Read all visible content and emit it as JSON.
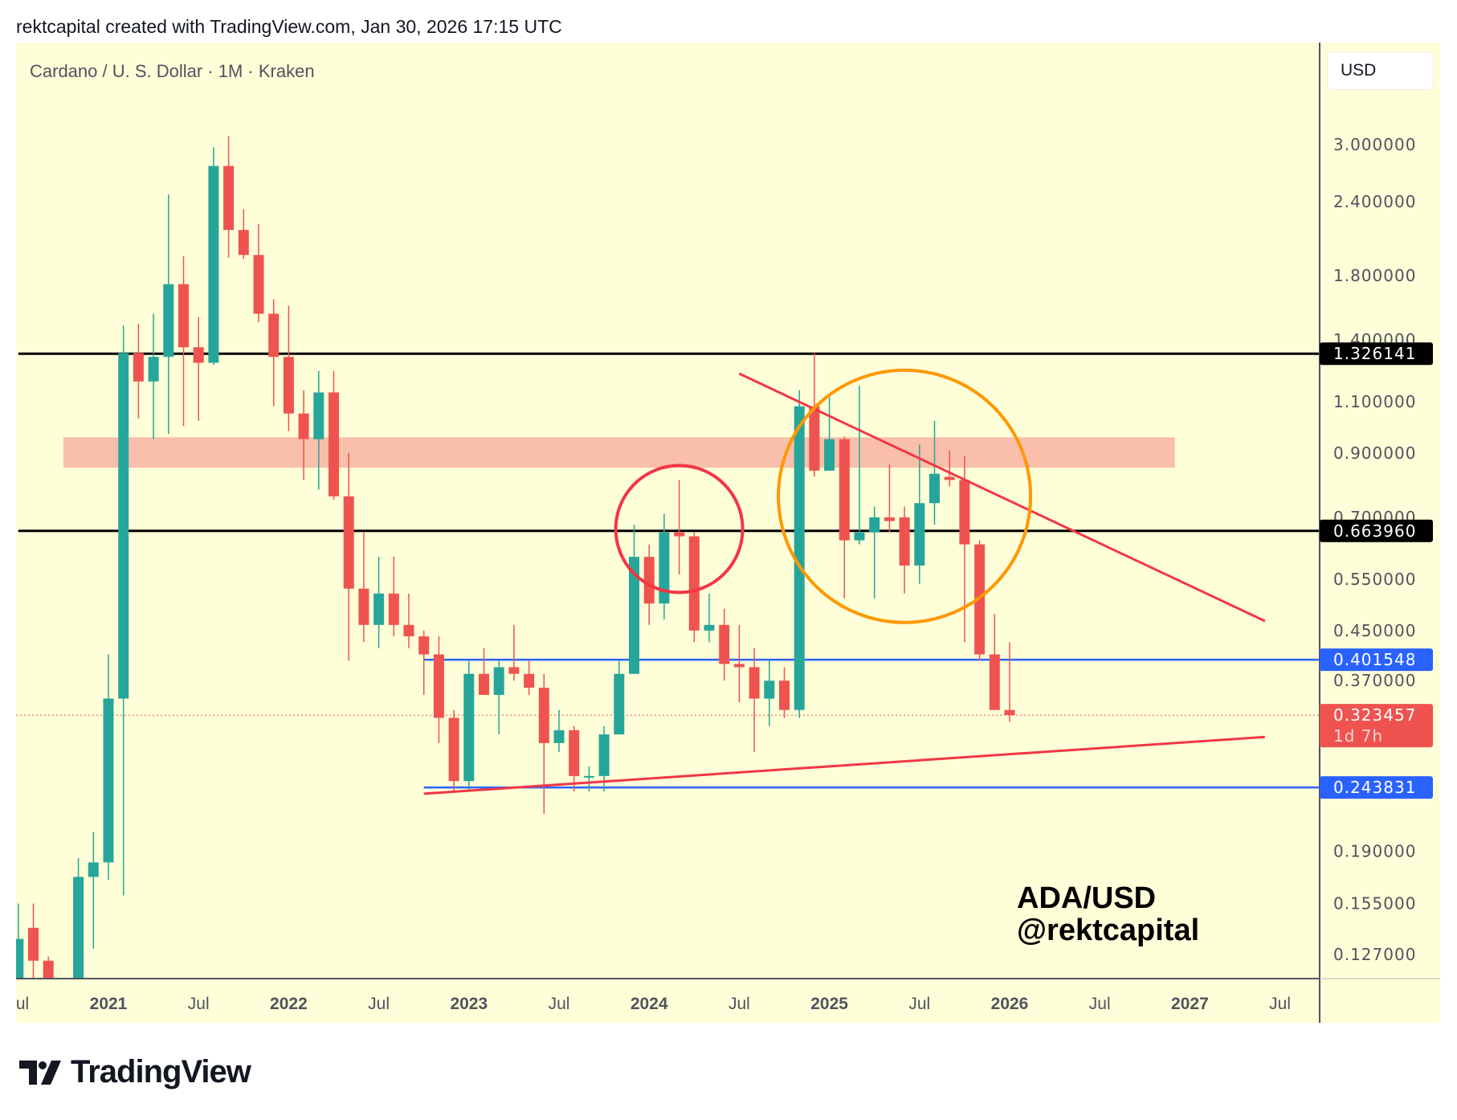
{
  "header": {
    "text": "rektcapital created with TradingView.com, Jan 30, 2026 17:15 UTC"
  },
  "symbol": {
    "title": "Cardano / U. S. Dollar · 1M · Kraken"
  },
  "currency_button": "USD",
  "footer": {
    "logo_text": "TradingView"
  },
  "chart_data": {
    "type": "candlestick",
    "scale": "log",
    "colors": {
      "up": "#26a69a",
      "down": "#ef5350"
    },
    "ylim": [
      0.1157,
      4.5
    ],
    "y_ticks": [
      "3.000000",
      "2.400000",
      "1.800000",
      "1.400000",
      "1.100000",
      "0.900000",
      "0.700000",
      "0.550000",
      "0.450000",
      "0.370000",
      "0.190000",
      "0.155000",
      "0.127000"
    ],
    "x_ticks": [
      {
        "date": "2020-07",
        "label": "Jul",
        "bold": false
      },
      {
        "date": "2021-01",
        "label": "2021",
        "bold": true
      },
      {
        "date": "2021-07",
        "label": "Jul",
        "bold": false
      },
      {
        "date": "2022-01",
        "label": "2022",
        "bold": true
      },
      {
        "date": "2022-07",
        "label": "Jul",
        "bold": false
      },
      {
        "date": "2023-01",
        "label": "2023",
        "bold": true
      },
      {
        "date": "2023-07",
        "label": "Jul",
        "bold": false
      },
      {
        "date": "2024-01",
        "label": "2024",
        "bold": true
      },
      {
        "date": "2024-07",
        "label": "Jul",
        "bold": false
      },
      {
        "date": "2025-01",
        "label": "2025",
        "bold": true
      },
      {
        "date": "2025-07",
        "label": "Jul",
        "bold": false
      },
      {
        "date": "2026-01",
        "label": "2026",
        "bold": true
      },
      {
        "date": "2026-07",
        "label": "Jul",
        "bold": false
      },
      {
        "date": "2027-01",
        "label": "2027",
        "bold": true
      },
      {
        "date": "2027-07",
        "label": "Jul",
        "bold": false
      }
    ],
    "candles_columns": [
      "date",
      "open",
      "high",
      "low",
      "close"
    ],
    "candles": [
      [
        "2020-07",
        0.095,
        0.155,
        0.09,
        0.135
      ],
      [
        "2020-08",
        0.141,
        0.155,
        0.115,
        0.124
      ],
      [
        "2020-09",
        0.124,
        0.126,
        0.08,
        0.1
      ],
      [
        "2020-10",
        0.1,
        0.11,
        0.09,
        0.097
      ],
      [
        "2020-11",
        0.097,
        0.185,
        0.09,
        0.172
      ],
      [
        "2020-12",
        0.172,
        0.205,
        0.13,
        0.182
      ],
      [
        "2021-01",
        0.182,
        0.41,
        0.17,
        0.345
      ],
      [
        "2021-02",
        0.345,
        1.48,
        0.16,
        1.33
      ],
      [
        "2021-03",
        1.33,
        1.49,
        1.03,
        1.19
      ],
      [
        "2021-04",
        1.19,
        1.55,
        0.95,
        1.31
      ],
      [
        "2021-05",
        1.31,
        2.47,
        0.97,
        1.74
      ],
      [
        "2021-06",
        1.74,
        1.94,
        1.0,
        1.36
      ],
      [
        "2021-07",
        1.36,
        1.53,
        1.02,
        1.28
      ],
      [
        "2021-08",
        1.28,
        2.97,
        1.27,
        2.76
      ],
      [
        "2021-09",
        2.76,
        3.1,
        1.93,
        2.15
      ],
      [
        "2021-10",
        2.15,
        2.33,
        1.92,
        1.95
      ],
      [
        "2021-11",
        1.95,
        2.2,
        1.5,
        1.55
      ],
      [
        "2021-12",
        1.55,
        1.64,
        1.08,
        1.31
      ],
      [
        "2022-01",
        1.31,
        1.6,
        0.98,
        1.05
      ],
      [
        "2022-02",
        1.05,
        1.15,
        0.81,
        0.95
      ],
      [
        "2022-03",
        0.95,
        1.24,
        0.78,
        1.14
      ],
      [
        "2022-04",
        1.14,
        1.24,
        0.75,
        0.76
      ],
      [
        "2022-05",
        0.76,
        0.9,
        0.4,
        0.53
      ],
      [
        "2022-06",
        0.53,
        0.66,
        0.43,
        0.46
      ],
      [
        "2022-07",
        0.46,
        0.6,
        0.42,
        0.52
      ],
      [
        "2022-08",
        0.52,
        0.6,
        0.44,
        0.46
      ],
      [
        "2022-09",
        0.46,
        0.52,
        0.42,
        0.44
      ],
      [
        "2022-10",
        0.44,
        0.45,
        0.35,
        0.41
      ],
      [
        "2022-11",
        0.41,
        0.44,
        0.29,
        0.32
      ],
      [
        "2022-12",
        0.32,
        0.33,
        0.24,
        0.25
      ],
      [
        "2023-01",
        0.25,
        0.4,
        0.24,
        0.38
      ],
      [
        "2023-02",
        0.38,
        0.42,
        0.35,
        0.35
      ],
      [
        "2023-03",
        0.35,
        0.4,
        0.3,
        0.39
      ],
      [
        "2023-04",
        0.39,
        0.46,
        0.37,
        0.38
      ],
      [
        "2023-05",
        0.38,
        0.4,
        0.35,
        0.36
      ],
      [
        "2023-06",
        0.36,
        0.38,
        0.22,
        0.29
      ],
      [
        "2023-07",
        0.29,
        0.33,
        0.28,
        0.305
      ],
      [
        "2023-08",
        0.305,
        0.31,
        0.24,
        0.255
      ],
      [
        "2023-09",
        0.255,
        0.265,
        0.24,
        0.255
      ],
      [
        "2023-10",
        0.255,
        0.31,
        0.24,
        0.3
      ],
      [
        "2023-11",
        0.3,
        0.4,
        0.3,
        0.38
      ],
      [
        "2023-12",
        0.38,
        0.68,
        0.38,
        0.6
      ],
      [
        "2024-01",
        0.6,
        0.63,
        0.46,
        0.5
      ],
      [
        "2024-02",
        0.5,
        0.71,
        0.47,
        0.66
      ],
      [
        "2024-03",
        0.66,
        0.81,
        0.56,
        0.65
      ],
      [
        "2024-04",
        0.65,
        0.66,
        0.43,
        0.45
      ],
      [
        "2024-05",
        0.45,
        0.52,
        0.43,
        0.46
      ],
      [
        "2024-06",
        0.46,
        0.49,
        0.37,
        0.395
      ],
      [
        "2024-07",
        0.395,
        0.46,
        0.34,
        0.39
      ],
      [
        "2024-08",
        0.39,
        0.42,
        0.28,
        0.345
      ],
      [
        "2024-09",
        0.345,
        0.4,
        0.31,
        0.37
      ],
      [
        "2024-10",
        0.37,
        0.39,
        0.32,
        0.33
      ],
      [
        "2024-11",
        0.33,
        1.15,
        0.32,
        1.08
      ],
      [
        "2024-12",
        1.08,
        1.33,
        0.82,
        0.84
      ],
      [
        "2025-01",
        0.84,
        1.12,
        0.84,
        0.95
      ],
      [
        "2025-02",
        0.95,
        0.96,
        0.51,
        0.64
      ],
      [
        "2025-03",
        0.64,
        1.17,
        0.63,
        0.66
      ],
      [
        "2025-04",
        0.66,
        0.73,
        0.51,
        0.7
      ],
      [
        "2025-05",
        0.7,
        0.86,
        0.66,
        0.69
      ],
      [
        "2025-06",
        0.7,
        0.73,
        0.52,
        0.58
      ],
      [
        "2025-07",
        0.58,
        0.93,
        0.54,
        0.74
      ],
      [
        "2025-08",
        0.74,
        1.02,
        0.68,
        0.83
      ],
      [
        "2025-09",
        0.82,
        0.91,
        0.79,
        0.81
      ],
      [
        "2025-10",
        0.81,
        0.89,
        0.43,
        0.63
      ],
      [
        "2025-11",
        0.63,
        0.64,
        0.4,
        0.41
      ],
      [
        "2025-12",
        0.41,
        0.48,
        0.33,
        0.33
      ],
      [
        "2026-01",
        0.33,
        0.43,
        0.315,
        0.323457
      ]
    ],
    "horizontal_levels": [
      {
        "price": 1.326141,
        "label": "1.326141",
        "color": "#000000",
        "start": "2020-07"
      },
      {
        "price": 0.66396,
        "label": "0.663960",
        "color": "#000000",
        "start": "2020-07"
      },
      {
        "price": 0.401548,
        "label": "0.401548",
        "color": "#2962ff",
        "start": "2022-10"
      },
      {
        "price": 0.243831,
        "label": "0.243831",
        "color": "#2962ff",
        "start": "2022-10"
      }
    ],
    "current_price": {
      "price": 0.323457,
      "label": "0.323457",
      "countdown": "1d 7h",
      "color": "#ef5350"
    },
    "zone": {
      "start": "2020-10",
      "end": "2026-12",
      "low": 0.85,
      "high": 0.957,
      "color": "#f9bfaa"
    },
    "trendlines": [
      {
        "start": [
          "2024-07",
          1.227
        ],
        "end": [
          "2027-06",
          0.467
        ],
        "color": "#f23645"
      },
      {
        "start": [
          "2022-10",
          0.238
        ],
        "end": [
          "2027-06",
          0.297
        ],
        "color": "#f23645"
      }
    ],
    "circles": [
      {
        "center": [
          "2024-03",
          0.669
        ],
        "color": "#f23645"
      },
      {
        "center": [
          "2025-06",
          0.76
        ],
        "color": "#ff9800"
      }
    ],
    "annotation": {
      "line1": "ADA/USD",
      "line2": "@rektcapital"
    }
  }
}
